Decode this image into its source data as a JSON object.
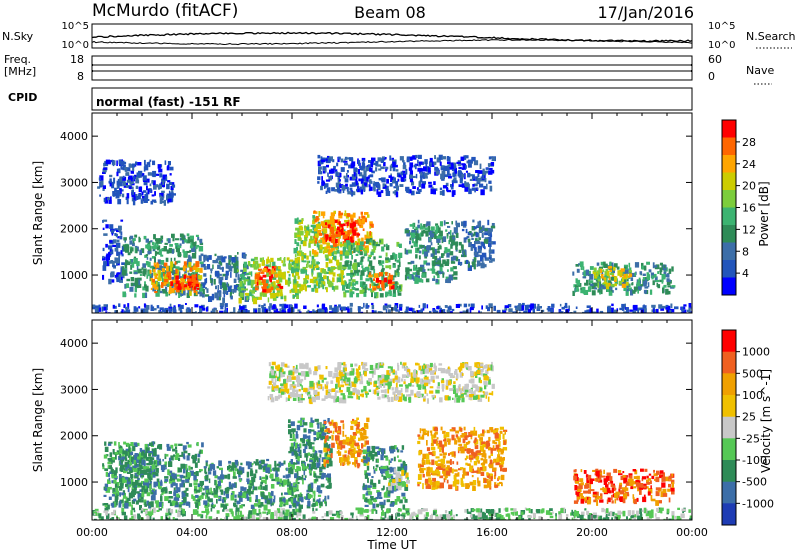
{
  "header": {
    "station": "McMurdo (fitACF)",
    "beam": "Beam 08",
    "date": "17/Jan/2016"
  },
  "params_panel": {
    "left_labels": [
      "N.Sky",
      "Freq.",
      "[MHz]",
      "CPID"
    ],
    "right_labels": [
      "N.Search",
      "Nave"
    ],
    "nsky_ticks": [
      "10^5",
      "10^0"
    ],
    "nsearch_ticks": [
      "10^5",
      "10^0"
    ],
    "freq_ticks": [
      "18",
      "8"
    ],
    "nave_ticks": [
      "60",
      "0"
    ],
    "cpid_text": "normal (fast) -151 RF"
  },
  "chart_data": [
    {
      "type": "heatmap",
      "title": "",
      "xlabel": "Time UT",
      "ylabel": "Slant Range [km]",
      "xlim": [
        "00:00",
        "24:00"
      ],
      "ylim": [
        180,
        4500
      ],
      "x_tick_labels": [
        "00:00",
        "04:00",
        "08:00",
        "12:00",
        "16:00",
        "20:00",
        "00:00"
      ],
      "y_tick_labels": [
        "1000",
        "2000",
        "3000",
        "4000"
      ],
      "colorbar": {
        "label": "Power [dB]",
        "ticks": [
          "4",
          "8",
          "12",
          "16",
          "20",
          "24",
          "28"
        ],
        "colors": [
          "#0000ff",
          "#2255bb",
          "#3c6ea8",
          "#2e8b57",
          "#3cb371",
          "#7ccd3c",
          "#cccc00",
          "#ffa500",
          "#ff6600",
          "#ff0000"
        ]
      },
      "patches": [
        {
          "t": [
            0.4,
            1.2
          ],
          "r": [
            900,
            2200
          ],
          "level": 1
        },
        {
          "t": [
            1.2,
            4.4
          ],
          "r": [
            600,
            1900
          ],
          "level": 3
        },
        {
          "t": [
            2.3,
            4.3
          ],
          "r": [
            650,
            1300
          ],
          "level": 7
        },
        {
          "t": [
            3.0,
            4.2
          ],
          "r": [
            700,
            1050
          ],
          "level": 9
        },
        {
          "t": [
            4.4,
            6.2
          ],
          "r": [
            500,
            1500
          ],
          "level": 2
        },
        {
          "t": [
            5.8,
            8.2
          ],
          "r": [
            500,
            1400
          ],
          "level": 5
        },
        {
          "t": [
            6.5,
            7.5
          ],
          "r": [
            700,
            1200
          ],
          "level": 8
        },
        {
          "t": [
            8.0,
            10.0
          ],
          "r": [
            700,
            2300
          ],
          "level": 5
        },
        {
          "t": [
            8.8,
            11.2
          ],
          "r": [
            1500,
            2400
          ],
          "level": 7
        },
        {
          "t": [
            9.3,
            10.6
          ],
          "r": [
            1700,
            2200
          ],
          "level": 9
        },
        {
          "t": [
            10.0,
            12.3
          ],
          "r": [
            600,
            1800
          ],
          "level": 4
        },
        {
          "t": [
            11.0,
            12.0
          ],
          "r": [
            700,
            1100
          ],
          "level": 8
        },
        {
          "t": [
            12.5,
            14.5
          ],
          "r": [
            900,
            2200
          ],
          "level": 3
        },
        {
          "t": [
            14.5,
            16.0
          ],
          "r": [
            1200,
            2200
          ],
          "level": 2
        },
        {
          "t": [
            9.0,
            16.0
          ],
          "r": [
            2800,
            3600
          ],
          "level": 1
        },
        {
          "t": [
            19.2,
            23.2
          ],
          "r": [
            650,
            1300
          ],
          "level": 3
        },
        {
          "t": [
            20.0,
            21.5
          ],
          "r": [
            800,
            1200
          ],
          "level": 6
        },
        {
          "t": [
            0.2,
            3.2
          ],
          "r": [
            2600,
            3500
          ],
          "level": 1
        },
        {
          "t": [
            0.0,
            24.0
          ],
          "r": [
            180,
            400
          ],
          "level": 1
        }
      ]
    },
    {
      "type": "heatmap",
      "title": "",
      "xlabel": "Time UT",
      "ylabel": "Slant Range [km]",
      "xlim": [
        "00:00",
        "24:00"
      ],
      "ylim": [
        180,
        4500
      ],
      "x_tick_labels": [
        "00:00",
        "04:00",
        "08:00",
        "12:00",
        "16:00",
        "20:00",
        "00:00"
      ],
      "y_tick_labels": [
        "1000",
        "2000",
        "3000",
        "4000"
      ],
      "colorbar": {
        "label": "Velocity [m s^-1]",
        "ticks": [
          "1000",
          "500",
          "100",
          "25",
          "-25",
          "-100",
          "-500",
          "-1000"
        ],
        "colors": [
          "#1e3cb4",
          "#3c6ea8",
          "#2e8b57",
          "#55c855",
          "#c8c8c8",
          "#f0c000",
          "#f0a000",
          "#f06020",
          "#ff0000"
        ]
      },
      "patches": [
        {
          "t": [
            0.4,
            4.4
          ],
          "r": [
            500,
            1900
          ],
          "level": 2
        },
        {
          "t": [
            1.0,
            2.5
          ],
          "r": [
            900,
            1700
          ],
          "level": 2
        },
        {
          "t": [
            4.4,
            8.2
          ],
          "r": [
            500,
            1500
          ],
          "level": 2
        },
        {
          "t": [
            7.8,
            9.5
          ],
          "r": [
            500,
            2400
          ],
          "level": 2
        },
        {
          "t": [
            9.2,
            11.0
          ],
          "r": [
            1400,
            2400
          ],
          "level": 6
        },
        {
          "t": [
            10.8,
            12.5
          ],
          "r": [
            500,
            1800
          ],
          "level": 2
        },
        {
          "t": [
            11.8,
            12.6
          ],
          "r": [
            900,
            1300
          ],
          "level": 4
        },
        {
          "t": [
            13.0,
            16.5
          ],
          "r": [
            900,
            2200
          ],
          "level": 6
        },
        {
          "t": [
            19.2,
            23.2
          ],
          "r": [
            600,
            1300
          ],
          "level": 7
        },
        {
          "t": [
            7.0,
            16.0
          ],
          "r": [
            2800,
            3600
          ],
          "level": 4
        },
        {
          "t": [
            0.0,
            24.0
          ],
          "r": [
            180,
            450
          ],
          "level": 3
        }
      ]
    }
  ]
}
